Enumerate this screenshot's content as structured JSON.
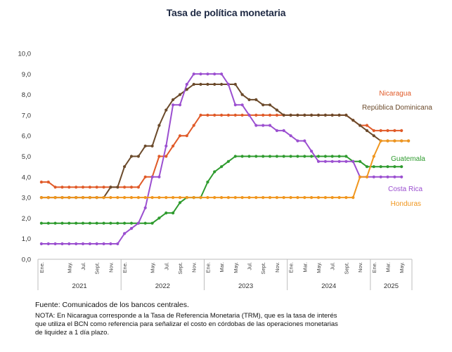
{
  "chart_data": {
    "type": "line",
    "title": "Tasa de política monetaria",
    "ylim": [
      0,
      10
    ],
    "y_ticks": [
      "0,0",
      "1,0",
      "2,0",
      "3,0",
      "4,0",
      "5,0",
      "6,0",
      "7,0",
      "8,0",
      "9,0",
      "10,0"
    ],
    "x": [
      "2021-01",
      "2021-02",
      "2021-03",
      "2021-04",
      "2021-05",
      "2021-06",
      "2021-07",
      "2021-08",
      "2021-09",
      "2021-10",
      "2021-11",
      "2021-12",
      "2022-01",
      "2022-02",
      "2022-03",
      "2022-04",
      "2022-05",
      "2022-06",
      "2022-07",
      "2022-08",
      "2022-09",
      "2022-10",
      "2022-11",
      "2022-12",
      "2023-01",
      "2023-02",
      "2023-03",
      "2023-04",
      "2023-05",
      "2023-06",
      "2023-07",
      "2023-08",
      "2023-09",
      "2023-10",
      "2023-11",
      "2023-12",
      "2024-01",
      "2024-02",
      "2024-03",
      "2024-04",
      "2024-05",
      "2024-06",
      "2024-07",
      "2024-08",
      "2024-09",
      "2024-10",
      "2024-11",
      "2024-12",
      "2025-01",
      "2025-02",
      "2025-03",
      "2025-04",
      "2025-05",
      "2025-06"
    ],
    "x_tick_labels": [
      "Ene.",
      "May.",
      "Jul.",
      "Sept.",
      "Nov.",
      "Ene.",
      "May.",
      "Jul.",
      "Sept.",
      "Nov.",
      "Ene.",
      "Mar.",
      "May.",
      "Jul.",
      "Sept.",
      "Nov.",
      "Ene.",
      "Mar.",
      "May.",
      "Jul.",
      "Sept.",
      "Nov.",
      "Ene.",
      "Mar.",
      "May."
    ],
    "years": [
      "2021",
      "2022",
      "2023",
      "2024",
      "2025"
    ],
    "series": [
      {
        "name": "Nicaragua",
        "color": "#e05a28",
        "values": [
          3.75,
          3.75,
          3.5,
          3.5,
          3.5,
          3.5,
          3.5,
          3.5,
          3.5,
          3.5,
          3.5,
          3.5,
          3.5,
          3.5,
          3.5,
          4.0,
          4.0,
          5.0,
          5.0,
          5.5,
          6.0,
          6.0,
          6.5,
          7.0,
          7.0,
          7.0,
          7.0,
          7.0,
          7.0,
          7.0,
          7.0,
          7.0,
          7.0,
          7.0,
          7.0,
          7.0,
          7.0,
          7.0,
          7.0,
          7.0,
          7.0,
          7.0,
          7.0,
          7.0,
          7.0,
          6.75,
          6.5,
          6.5,
          6.25,
          6.25,
          6.25,
          6.25,
          6.25,
          null
        ]
      },
      {
        "name": "República Dominicana",
        "color": "#6b4a2b",
        "values": [
          3.0,
          3.0,
          3.0,
          3.0,
          3.0,
          3.0,
          3.0,
          3.0,
          3.0,
          3.0,
          3.5,
          3.5,
          4.5,
          5.0,
          5.0,
          5.5,
          5.5,
          6.5,
          7.25,
          7.75,
          8.0,
          8.25,
          8.5,
          8.5,
          8.5,
          8.5,
          8.5,
          8.5,
          8.5,
          8.0,
          7.75,
          7.75,
          7.5,
          7.5,
          7.25,
          7.0,
          7.0,
          7.0,
          7.0,
          7.0,
          7.0,
          7.0,
          7.0,
          7.0,
          7.0,
          6.75,
          6.5,
          6.25,
          6.0,
          5.75,
          5.75,
          5.75,
          5.75,
          5.75
        ]
      },
      {
        "name": "Guatemala",
        "color": "#2e9b2e",
        "values": [
          1.75,
          1.75,
          1.75,
          1.75,
          1.75,
          1.75,
          1.75,
          1.75,
          1.75,
          1.75,
          1.75,
          1.75,
          1.75,
          1.75,
          1.75,
          1.75,
          1.75,
          2.0,
          2.25,
          2.25,
          2.75,
          3.0,
          3.0,
          3.0,
          3.75,
          4.25,
          4.5,
          4.75,
          5.0,
          5.0,
          5.0,
          5.0,
          5.0,
          5.0,
          5.0,
          5.0,
          5.0,
          5.0,
          5.0,
          5.0,
          5.0,
          5.0,
          5.0,
          5.0,
          5.0,
          4.75,
          4.75,
          4.5,
          4.5,
          4.5,
          4.5,
          4.5,
          4.5,
          null
        ]
      },
      {
        "name": "Costa Rica",
        "color": "#9b4fd0",
        "values": [
          0.75,
          0.75,
          0.75,
          0.75,
          0.75,
          0.75,
          0.75,
          0.75,
          0.75,
          0.75,
          0.75,
          0.75,
          1.25,
          1.5,
          1.75,
          2.5,
          4.0,
          4.0,
          5.5,
          7.5,
          7.5,
          8.5,
          9.0,
          9.0,
          9.0,
          9.0,
          9.0,
          8.5,
          7.5,
          7.5,
          7.0,
          6.5,
          6.5,
          6.5,
          6.25,
          6.25,
          6.0,
          5.75,
          5.75,
          5.25,
          4.75,
          4.75,
          4.75,
          4.75,
          4.75,
          4.75,
          4.0,
          4.0,
          4.0,
          4.0,
          4.0,
          4.0,
          4.0,
          null
        ]
      },
      {
        "name": "Honduras",
        "color": "#f0961e",
        "values": [
          3.0,
          3.0,
          3.0,
          3.0,
          3.0,
          3.0,
          3.0,
          3.0,
          3.0,
          3.0,
          3.0,
          3.0,
          3.0,
          3.0,
          3.0,
          3.0,
          3.0,
          3.0,
          3.0,
          3.0,
          3.0,
          3.0,
          3.0,
          3.0,
          3.0,
          3.0,
          3.0,
          3.0,
          3.0,
          3.0,
          3.0,
          3.0,
          3.0,
          3.0,
          3.0,
          3.0,
          3.0,
          3.0,
          3.0,
          3.0,
          3.0,
          3.0,
          3.0,
          3.0,
          3.0,
          3.0,
          4.0,
          4.0,
          5.0,
          5.75,
          5.75,
          5.75,
          5.75,
          5.75
        ]
      }
    ],
    "grid": false,
    "legend": "inline-right"
  },
  "footer": {
    "source": "Fuente: Comunicados de los bancos centrales.",
    "note": "NOTA: En Nicaragua corresponde a la Tasa de Referencia Monetaria (TRM), que es la tasa de interés que utiliza el BCN como referencia para señalizar el costo en córdobas de las operaciones monetarias de liquidez a 1 día plazo."
  }
}
